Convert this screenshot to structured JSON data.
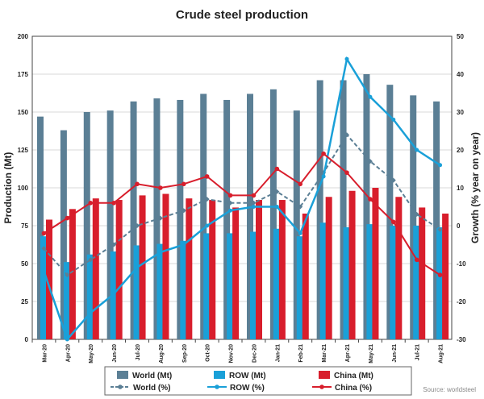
{
  "chart_data": {
    "type": "bar",
    "title": "Crude steel production",
    "ylabel": "Production (Mt)",
    "y2label": "Growth (% year on year)",
    "ylim": [
      0,
      200
    ],
    "y2lim": [
      -30,
      50
    ],
    "yticks": [
      "0",
      "25",
      "50",
      "75",
      "100",
      "125",
      "150",
      "175",
      "200"
    ],
    "y2ticks": [
      "-30",
      "-20",
      "-10",
      "0",
      "10",
      "20",
      "30",
      "40",
      "50"
    ],
    "grid": true,
    "legend_position": "bottom",
    "categories": [
      "Mar-20",
      "Apr-20",
      "May-20",
      "Jun-20",
      "Jul-20",
      "Aug-20",
      "Sep-20",
      "Oct-20",
      "Nov-20",
      "Dec-20",
      "Jan-21",
      "Feb-21",
      "Mar-21",
      "Apr-21",
      "May-21",
      "Jun-21",
      "Jul-21",
      "Aug-21"
    ],
    "bar_series": [
      {
        "name": "World (Mt)",
        "color": "#5b7f95",
        "values": [
          147,
          138,
          150,
          151,
          157,
          159,
          158,
          162,
          158,
          162,
          165,
          151,
          171,
          171,
          175,
          168,
          161,
          157
        ]
      },
      {
        "name": "ROW (Mt)",
        "color": "#1aa0d8",
        "values": [
          68,
          51,
          56,
          58,
          62,
          63,
          65,
          70,
          70,
          71,
          73,
          68,
          77,
          74,
          76,
          75,
          75,
          74
        ]
      },
      {
        "name": "China (Mt)",
        "color": "#d81e2c",
        "values": [
          79,
          86,
          93,
          92,
          95,
          96,
          93,
          92,
          87,
          92,
          92,
          83,
          94,
          98,
          100,
          94,
          87,
          83
        ]
      }
    ],
    "line_series": [
      {
        "name": "World (%)",
        "color": "#5b7f95",
        "values": [
          -6,
          -13,
          -9,
          -5,
          0,
          2,
          4,
          7,
          6,
          6,
          9,
          5,
          14,
          24,
          17,
          12,
          3,
          -1
        ]
      },
      {
        "name": "ROW (%)",
        "color": "#1aa0d8",
        "values": [
          -12,
          -30,
          -23,
          -18,
          -11,
          -7,
          -5,
          0,
          4,
          5,
          5,
          -2,
          13,
          44,
          34,
          28,
          20,
          16
        ]
      },
      {
        "name": "China (%)",
        "color": "#d81e2c",
        "values": [
          -2,
          2,
          6,
          6,
          11,
          10,
          11,
          13,
          8,
          8,
          15,
          11,
          19,
          14,
          7,
          1,
          -9,
          -13
        ]
      }
    ],
    "source": "Source: worldsteel"
  }
}
